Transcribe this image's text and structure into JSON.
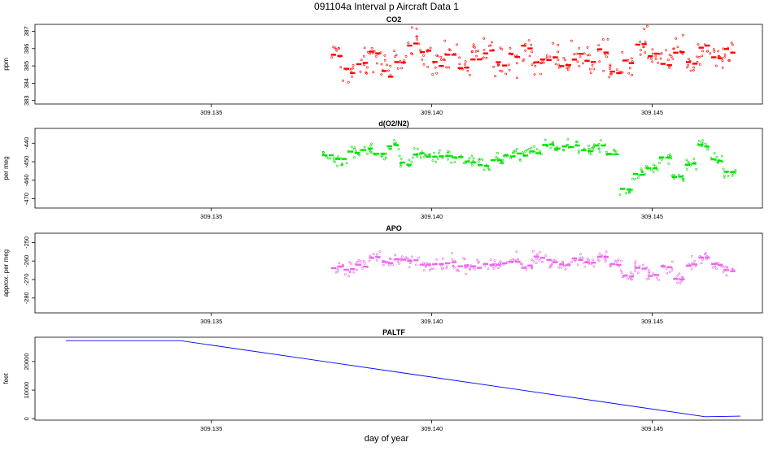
{
  "page": {
    "title": "091104a   Interval p Aircraft Data 1",
    "xlabel": "day of year"
  },
  "colors": {
    "co2": "#ff0000",
    "o2n2": "#00e000",
    "apo": "#ee66ee",
    "paltf": "#0000ff",
    "axis": "#000000"
  },
  "chart_data": [
    {
      "type": "scatter",
      "title": "CO2",
      "ylabel": "ppm",
      "xlim": [
        309.131,
        309.1475
      ],
      "ylim": [
        382.8,
        387.4
      ],
      "x_ticks": [
        309.135,
        309.14,
        309.145
      ],
      "x_tick_labels": [
        "309.135",
        "309.140",
        "309.145"
      ],
      "y_ticks": [
        383,
        384,
        385,
        386,
        387
      ],
      "y_tick_labels": [
        "383",
        "384",
        "385",
        "386",
        "387"
      ],
      "grid": false,
      "x_range_data": [
        309.1377,
        309.1469
      ],
      "mean_level": 385.4,
      "spread": 0.8,
      "segment_levels": [
        385.6,
        384.7,
        385.2,
        385.7,
        384.6,
        385.3,
        386.4,
        385.8,
        385.1,
        385.7,
        384.9,
        385.4,
        385.8,
        385.1,
        385.6,
        386.0,
        385.2,
        385.5,
        385.0,
        385.6,
        385.2,
        385.9,
        384.6,
        385.3,
        386.3,
        385.6,
        385.2,
        385.8,
        385.2,
        386.0,
        385.5,
        385.8
      ],
      "series": [
        {
          "name": "CO2",
          "color": "#ff0000"
        }
      ]
    },
    {
      "type": "scatter",
      "title": "d(O2/N2)",
      "ylabel": "per meg",
      "xlim": [
        309.131,
        309.1475
      ],
      "ylim": [
        -475,
        -432
      ],
      "x_ticks": [
        309.135,
        309.14,
        309.145
      ],
      "x_tick_labels": [
        "309.135",
        "309.140",
        "309.145"
      ],
      "y_ticks": [
        -470,
        -460,
        -450,
        -440
      ],
      "y_tick_labels": [
        "-470",
        "-460",
        "-450",
        "-440"
      ],
      "grid": false,
      "x_range_data": [
        309.1375,
        309.1469
      ],
      "mean_level": -447,
      "spread": 3.5,
      "segment_levels": [
        -447,
        -449,
        -445,
        -443,
        -446,
        -441,
        -451,
        -446,
        -447,
        -447,
        -448,
        -450,
        -452,
        -449,
        -447,
        -446,
        -445,
        -441,
        -443,
        -442,
        -444,
        -441,
        -446,
        -465,
        -457,
        -453,
        -448,
        -458,
        -451,
        -441,
        -449,
        -456
      ],
      "series": [
        {
          "name": "d(O2/N2)",
          "color": "#00e000"
        }
      ]
    },
    {
      "type": "scatter",
      "title": "APO",
      "ylabel": "approx. per meg",
      "xlim": [
        309.131,
        309.1475
      ],
      "ylim": [
        -288,
        -245
      ],
      "x_ticks": [
        309.135,
        309.14,
        309.145
      ],
      "x_tick_labels": [
        "309.135",
        "309.140",
        "309.145"
      ],
      "y_ticks": [
        -280,
        -270,
        -260,
        -250
      ],
      "y_tick_labels": [
        "-280",
        "-270",
        "-260",
        "-250"
      ],
      "grid": false,
      "x_range_data": [
        309.1377,
        309.1469
      ],
      "mean_level": -262,
      "spread": 3.5,
      "segment_levels": [
        -263,
        -265,
        -262,
        -258,
        -261,
        -259,
        -260,
        -262,
        -261,
        -261,
        -263,
        -263,
        -262,
        -261,
        -260,
        -263,
        -258,
        -260,
        -262,
        -259,
        -261,
        -258,
        -262,
        -268,
        -264,
        -268,
        -263,
        -270,
        -262,
        -258,
        -262,
        -265
      ],
      "series": [
        {
          "name": "APO",
          "color": "#ee66ee"
        }
      ]
    },
    {
      "type": "line",
      "title": "PALTF",
      "ylabel": "feet",
      "xlabel": "day of year",
      "xlim": [
        309.131,
        309.1475
      ],
      "ylim": [
        -500,
        28500
      ],
      "x_ticks": [
        309.135,
        309.14,
        309.145
      ],
      "x_tick_labels": [
        "309.135",
        "309.140",
        "309.145"
      ],
      "y_ticks": [
        0,
        10000,
        20000
      ],
      "y_tick_labels": [
        "0",
        "10000",
        "20000"
      ],
      "grid": false,
      "x": [
        309.1317,
        309.1343,
        309.1462,
        309.147
      ],
      "values": [
        27300,
        27300,
        700,
        900
      ],
      "series": [
        {
          "name": "PALTF",
          "color": "#0000ff"
        }
      ]
    }
  ]
}
